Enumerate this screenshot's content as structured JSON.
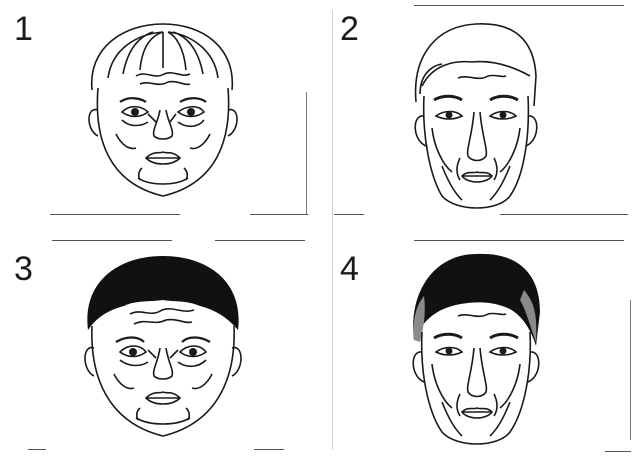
{
  "panels": [
    {
      "label": "1",
      "hair": "light",
      "shape": "round",
      "aged": false
    },
    {
      "label": "2",
      "hair": "light",
      "shape": "long",
      "aged": true
    },
    {
      "label": "3",
      "hair": "dark",
      "shape": "round",
      "aged": false
    },
    {
      "label": "4",
      "hair": "dark",
      "shape": "long",
      "aged": true
    }
  ],
  "colors": {
    "ink": "#1a1a1a",
    "hair_dark": "#111111",
    "hair_gray": "#8a8a8a",
    "paper": "#ffffff"
  }
}
